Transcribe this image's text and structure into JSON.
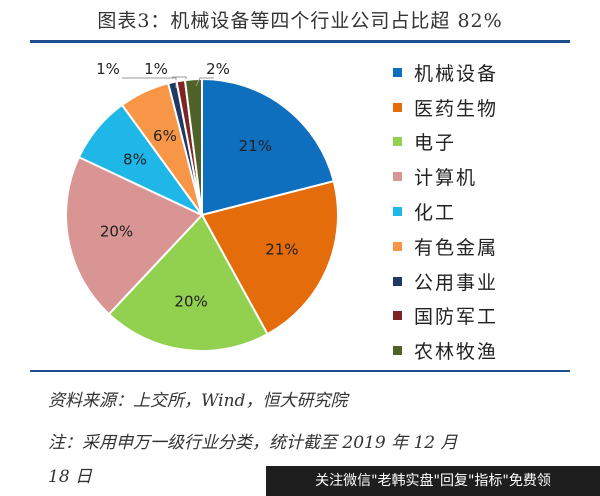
{
  "title": "图表3：机械设备等四个行业公司占比超 82%",
  "chart_data": {
    "type": "pie",
    "title": "图表3：机械设备等四个行业公司占比超 82%",
    "labels": [
      "机械设备",
      "医药生物",
      "电子",
      "计算机",
      "化工",
      "有色金属",
      "公用事业",
      "国防军工",
      "农林牧渔"
    ],
    "values": [
      21,
      21,
      20,
      20,
      8,
      6,
      1,
      1,
      2
    ],
    "value_labels": [
      "21%",
      "21%",
      "20%",
      "20%",
      "8%",
      "6%",
      "1%",
      "1%",
      "2%"
    ],
    "colors": [
      "#0f6fbf",
      "#e46c0a",
      "#92d050",
      "#d99594",
      "#1fb6e8",
      "#f79646",
      "#1f3864",
      "#7f2323",
      "#4f6228"
    ],
    "legend_position": "right"
  },
  "footer": {
    "source": "资料来源：上交所，Wind，恒大研究院",
    "note_line1": "注：采用申万一级行业分类，统计截至 2019 年 12 月",
    "note_line2": "18 日"
  },
  "watermark": "关注微信\"老韩实盘\"回复\"指标\"免费领"
}
